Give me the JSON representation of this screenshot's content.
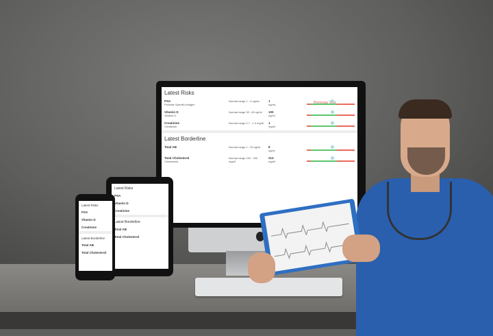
{
  "monitor": {
    "risks_title": "Latest Risks",
    "previous_test": "Previous Test",
    "risks": [
      {
        "name": "PSA",
        "sub": "Prostate Specific Antigen",
        "range": "Normal range 1 - 4 ng/mL",
        "value": "1",
        "unit": "ng/mL"
      },
      {
        "name": "Vitamin D",
        "sub": "Vitamin D",
        "range": "Normal range 30 - 80 ng/ml",
        "value": "100",
        "unit": "ng/ml"
      },
      {
        "name": "Creatinine",
        "sub": "Creatinine",
        "range": "Normal range 0.7 - 1.3 mg/dl",
        "value": "1",
        "unit": "mg/dl"
      }
    ],
    "borderline_title": "Latest Borderline",
    "borderline": [
      {
        "name": "Total AB",
        "range": "Normal range 1 - 25 ug/dL",
        "value": "8",
        "unit": "ug/dL"
      },
      {
        "name": "Total Cholesterol",
        "sub": "Cholesterol",
        "range": "Normal range 100 - 200 mg/dl",
        "value": "213",
        "unit": "mg/dl"
      }
    ]
  },
  "tablet": {
    "risks_title": "Latest Risks",
    "borderline_title": "Latest Borderline",
    "items": [
      "PSA",
      "Vitamin D",
      "Creatinine"
    ],
    "border_items": [
      "Total AB",
      "Total Cholesterol"
    ]
  },
  "phone": {
    "risks_title": "Latest Risks",
    "borderline_title": "Latest Borderline",
    "items": [
      "PSA",
      "Vitamin D",
      "Creatinine"
    ],
    "border_items": [
      "Total AB",
      "Total Cholesterol"
    ]
  },
  "colors": {
    "risk": "#e96a5a",
    "normal": "#5cc66e",
    "scrubs": "#2a5fae"
  }
}
